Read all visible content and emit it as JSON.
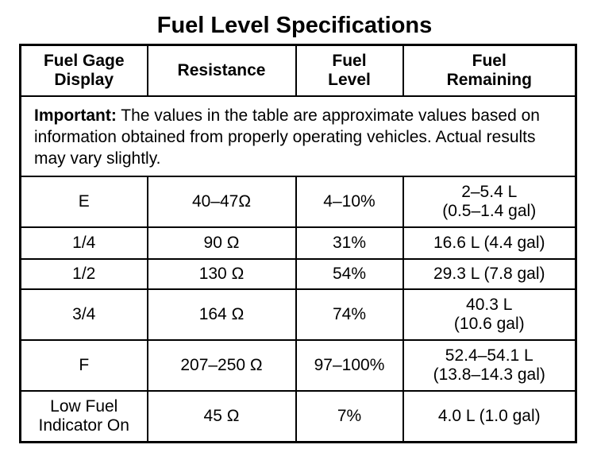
{
  "title": "Fuel Level Specifications",
  "headers": {
    "gage_display": [
      "Fuel Gage",
      "Display"
    ],
    "resistance": "Resistance",
    "fuel_level": [
      "Fuel",
      "Level"
    ],
    "fuel_remaining": [
      "Fuel",
      "Remaining"
    ]
  },
  "note": {
    "label": "Important:",
    "text": " The values in the table are approximate values based on information obtained from properly operating vehicles. Actual results may vary slightly."
  },
  "rows": [
    {
      "gage": [
        "E"
      ],
      "resistance": "40–47Ω",
      "level": "4–10%",
      "remaining": [
        "2–5.4 L",
        "(0.5–1.4 gal)"
      ]
    },
    {
      "gage": [
        "1/4"
      ],
      "resistance": "90 Ω",
      "level": "31%",
      "remaining": [
        "16.6 L (4.4 gal)"
      ]
    },
    {
      "gage": [
        "1/2"
      ],
      "resistance": "130 Ω",
      "level": "54%",
      "remaining": [
        "29.3 L (7.8 gal)"
      ]
    },
    {
      "gage": [
        "3/4"
      ],
      "resistance": "164 Ω",
      "level": "74%",
      "remaining": [
        "40.3 L",
        "(10.6 gal)"
      ]
    },
    {
      "gage": [
        "F"
      ],
      "resistance": "207–250 Ω",
      "level": "97–100%",
      "remaining": [
        "52.4–54.1 L",
        "(13.8–14.3 gal)"
      ]
    },
    {
      "gage": [
        "Low Fuel",
        "Indicator On"
      ],
      "resistance": "45 Ω",
      "level": "7%",
      "remaining": [
        "4.0 L (1.0 gal)"
      ]
    }
  ]
}
